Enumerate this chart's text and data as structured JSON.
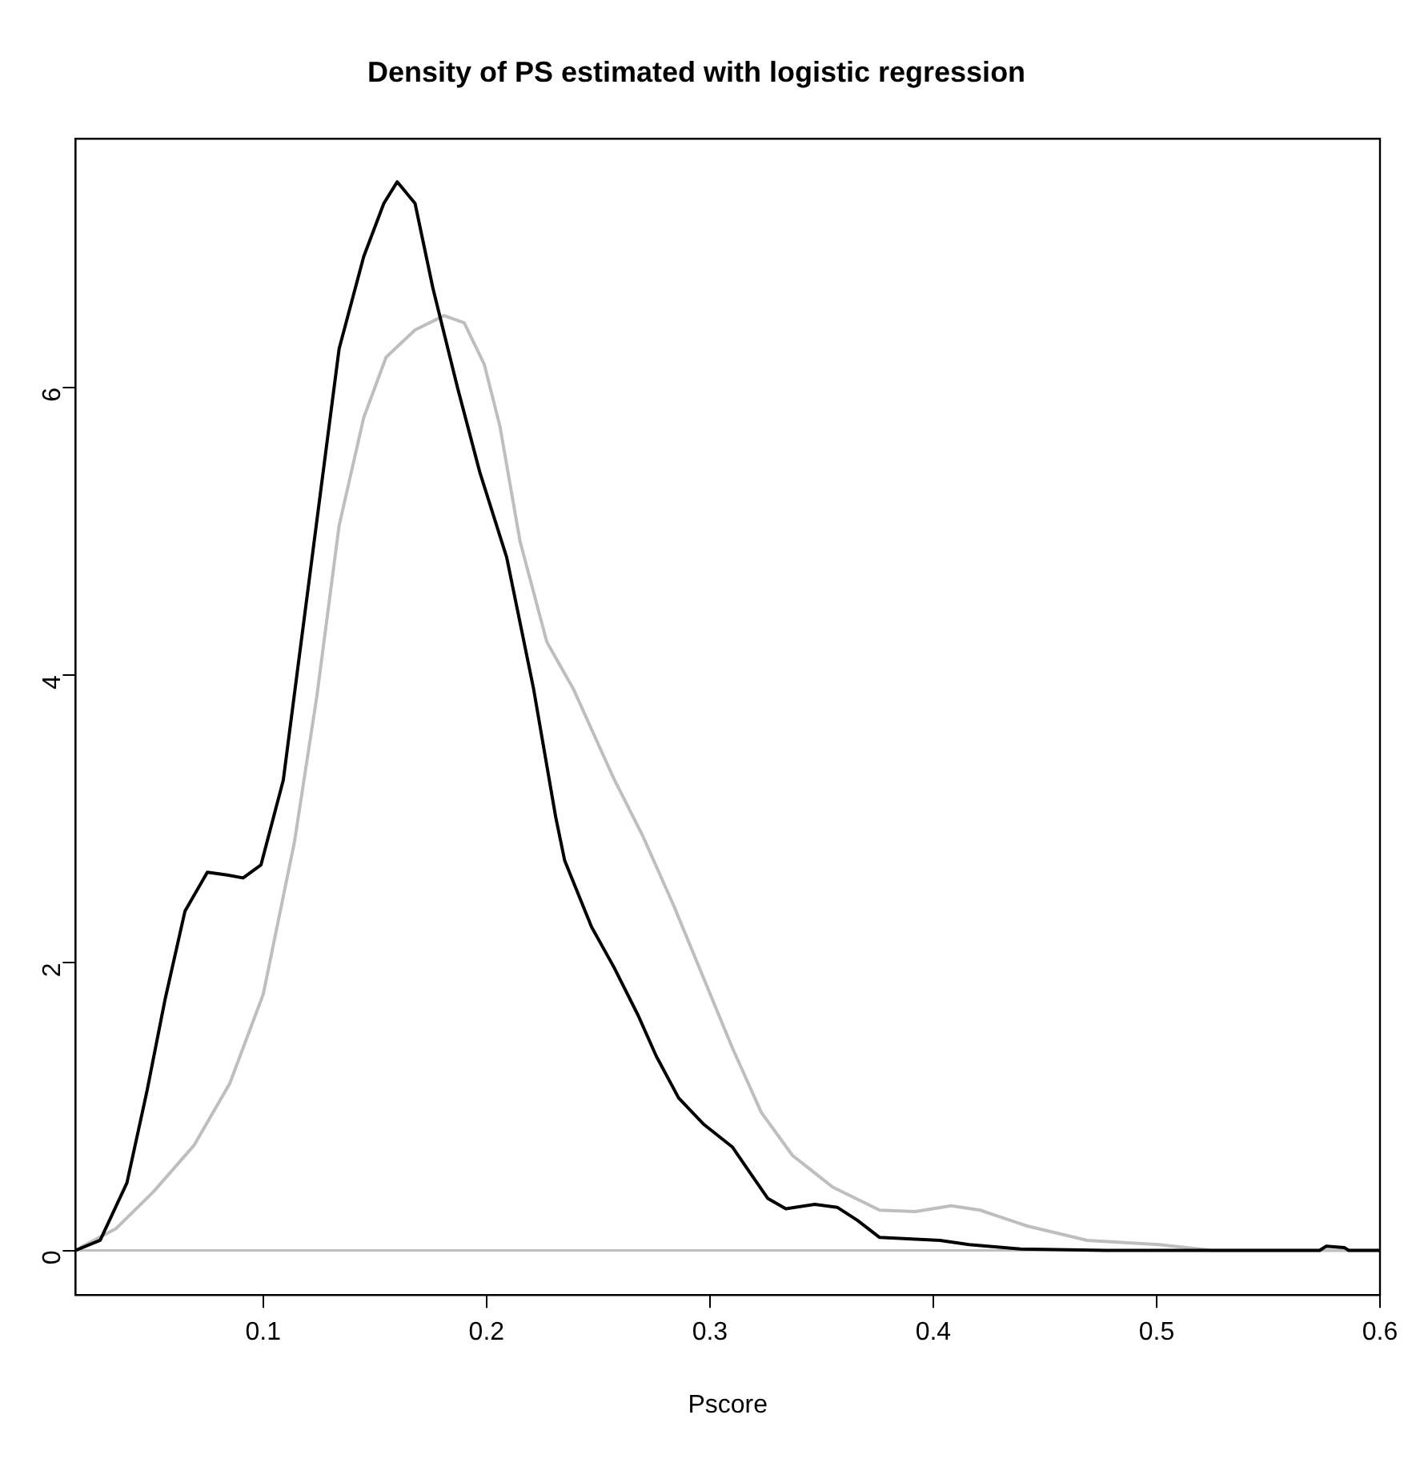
{
  "chart_data": {
    "type": "line",
    "title": "Density of PS estimated with logistic regression",
    "xlabel": "Pscore",
    "xlim": [
      0.016,
      0.6
    ],
    "xticks": [
      {
        "value": 0.1,
        "label": "0.1"
      },
      {
        "value": 0.2,
        "label": "0.2"
      },
      {
        "value": 0.3,
        "label": "0.3"
      },
      {
        "value": 0.4,
        "label": "0.4"
      },
      {
        "value": 0.5,
        "label": "0.5"
      },
      {
        "value": 0.6,
        "label": "0.6"
      }
    ],
    "ylim": [
      -0.31,
      7.73
    ],
    "yticks": [
      0,
      2,
      4,
      6
    ],
    "grid": false,
    "legend": false,
    "marker": "none",
    "line_style": "solid",
    "ref_lines": [
      {
        "axis": "y",
        "value": 0,
        "color": "#bebebe"
      }
    ],
    "series": [
      {
        "color": "#000000",
        "x": [
          0.016,
          0.027,
          0.039,
          0.048,
          0.056,
          0.065,
          0.075,
          0.084,
          0.091,
          0.099,
          0.109,
          0.117,
          0.126,
          0.134,
          0.145,
          0.154,
          0.16,
          0.168,
          0.176,
          0.187,
          0.197,
          0.209,
          0.221,
          0.231,
          0.235,
          0.247,
          0.257,
          0.268,
          0.276,
          0.286,
          0.297,
          0.31,
          0.318,
          0.326,
          0.334,
          0.347,
          0.357,
          0.366,
          0.376,
          0.403,
          0.416,
          0.439,
          0.477,
          0.573,
          0.576,
          0.584,
          0.586,
          0.6
        ],
        "values": [
          0,
          0.07,
          0.47,
          1.11,
          1.74,
          2.36,
          2.63,
          2.61,
          2.59,
          2.68,
          3.27,
          4.23,
          5.31,
          6.27,
          6.91,
          7.28,
          7.43,
          7.28,
          6.69,
          6.0,
          5.41,
          4.82,
          3.91,
          3.01,
          2.71,
          2.25,
          1.97,
          1.63,
          1.35,
          1.06,
          0.88,
          0.72,
          0.54,
          0.36,
          0.29,
          0.32,
          0.3,
          0.21,
          0.09,
          0.07,
          0.04,
          0.01,
          0,
          0,
          0.03,
          0.02,
          0,
          0
        ]
      },
      {
        "color": "#bebebe",
        "x": [
          0.018,
          0.034,
          0.051,
          0.069,
          0.085,
          0.1,
          0.114,
          0.124,
          0.134,
          0.145,
          0.155,
          0.168,
          0.181,
          0.19,
          0.199,
          0.206,
          0.215,
          0.227,
          0.239,
          0.257,
          0.27,
          0.284,
          0.297,
          0.31,
          0.323,
          0.337,
          0.355,
          0.376,
          0.392,
          0.408,
          0.421,
          0.442,
          0.469,
          0.501,
          0.525,
          0.6
        ],
        "values": [
          0.02,
          0.15,
          0.41,
          0.73,
          1.16,
          1.78,
          2.84,
          3.85,
          5.04,
          5.79,
          6.21,
          6.4,
          6.5,
          6.45,
          6.16,
          5.73,
          4.93,
          4.23,
          3.9,
          3.28,
          2.88,
          2.39,
          1.9,
          1.41,
          0.96,
          0.66,
          0.44,
          0.28,
          0.27,
          0.31,
          0.28,
          0.17,
          0.07,
          0.04,
          0,
          0
        ]
      }
    ]
  }
}
